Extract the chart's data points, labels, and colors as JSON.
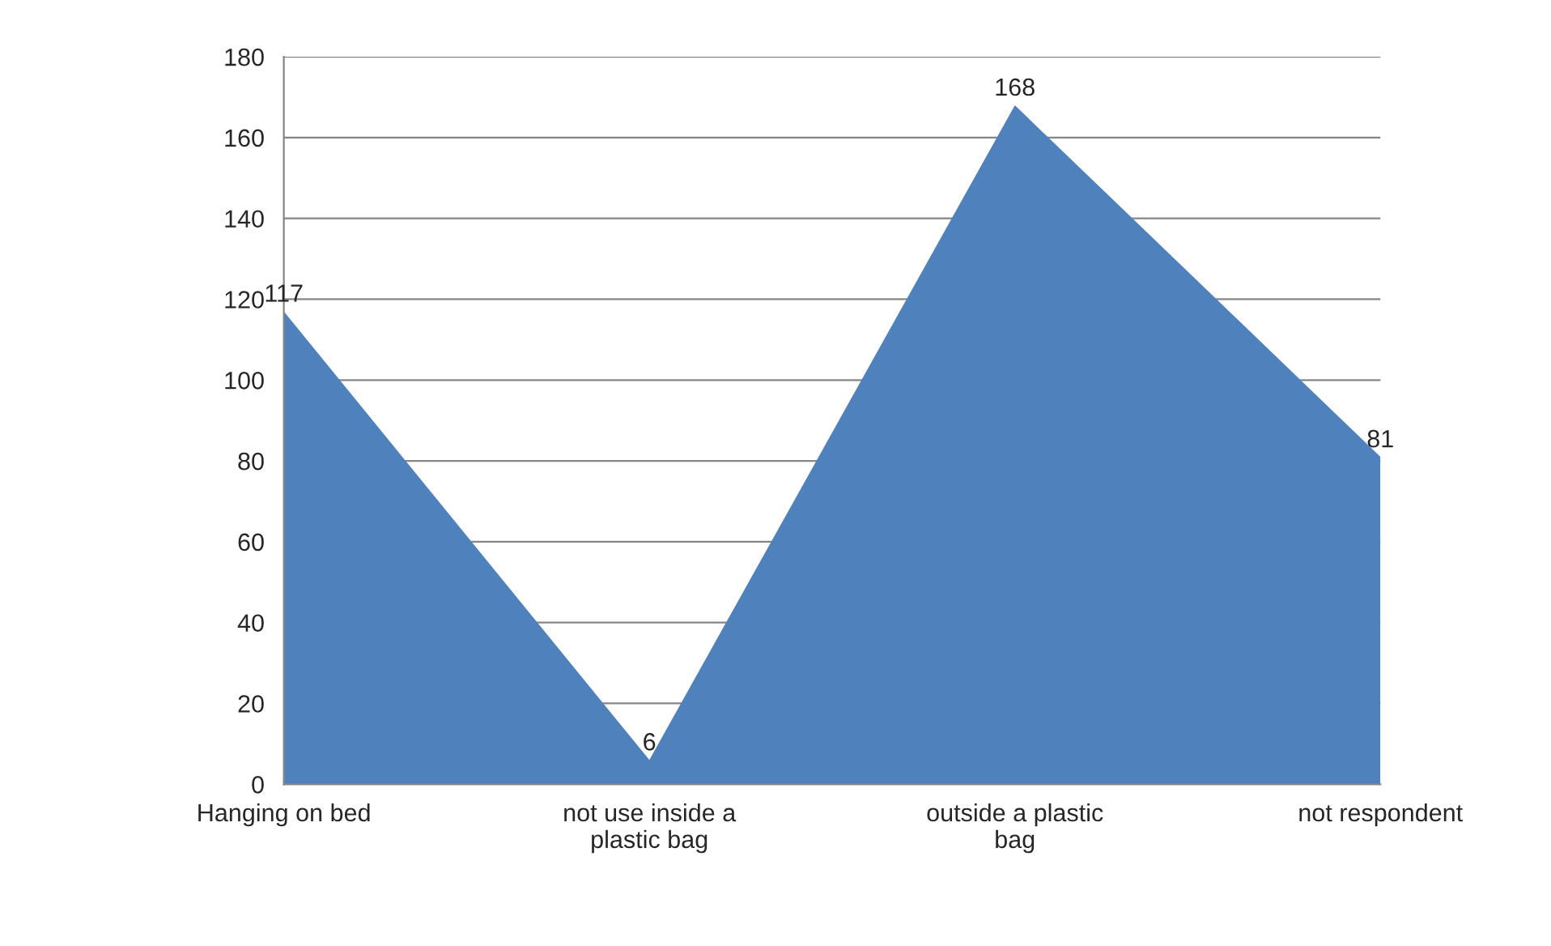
{
  "chart_data": {
    "type": "area",
    "categories": [
      "Hanging on bed",
      "not use inside a plastic bag",
      "outside a plastic bag",
      "not respondent"
    ],
    "values": [
      117,
      6,
      168,
      81
    ],
    "color": "#4f81bd",
    "ylim": [
      0,
      180
    ],
    "yticks": [
      0,
      20,
      40,
      60,
      80,
      100,
      120,
      140,
      160,
      180
    ],
    "grid": "y",
    "value_labels": [
      "117",
      "6",
      "168",
      "81"
    ]
  }
}
